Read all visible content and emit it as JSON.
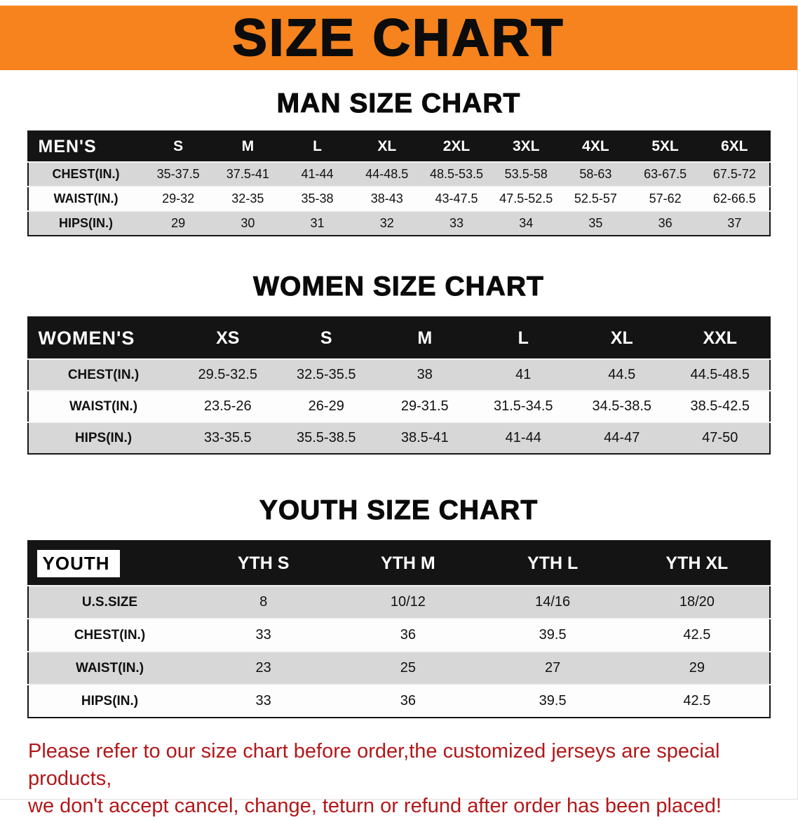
{
  "banner": {
    "title": "SIZE CHART"
  },
  "colors": {
    "banner_bg": "#F6831D",
    "table_header_bg": "#141414",
    "table_alt_row": "#D7D7D7",
    "footer_text": "#B3181A"
  },
  "sections": {
    "men": {
      "heading": "MAN SIZE CHART",
      "table": {
        "label": "MEN'S",
        "columns": [
          "S",
          "M",
          "L",
          "XL",
          "2XL",
          "3XL",
          "4XL",
          "5XL",
          "6XL"
        ],
        "rows": [
          {
            "label": "CHEST(IN.)",
            "values": [
              "35-37.5",
              "37.5-41",
              "41-44",
              "44-48.5",
              "48.5-53.5",
              "53.5-58",
              "58-63",
              "63-67.5",
              "67.5-72"
            ]
          },
          {
            "label": "WAIST(IN.)",
            "values": [
              "29-32",
              "32-35",
              "35-38",
              "38-43",
              "43-47.5",
              "47.5-52.5",
              "52.5-57",
              "57-62",
              "62-66.5"
            ]
          },
          {
            "label": "HIPS(IN.)",
            "values": [
              "29",
              "30",
              "31",
              "32",
              "33",
              "34",
              "35",
              "36",
              "37"
            ]
          }
        ]
      }
    },
    "women": {
      "heading": "WOMEN SIZE CHART",
      "table": {
        "label": "WOMEN'S",
        "columns": [
          "XS",
          "S",
          "M",
          "L",
          "XL",
          "XXL"
        ],
        "rows": [
          {
            "label": "CHEST(IN.)",
            "values": [
              "29.5-32.5",
              "32.5-35.5",
              "38",
              "41",
              "44.5",
              "44.5-48.5"
            ]
          },
          {
            "label": "WAIST(IN.)",
            "values": [
              "23.5-26",
              "26-29",
              "29-31.5",
              "31.5-34.5",
              "34.5-38.5",
              "38.5-42.5"
            ]
          },
          {
            "label": "HIPS(IN.)",
            "values": [
              "33-35.5",
              "35.5-38.5",
              "38.5-41",
              "41-44",
              "44-47",
              "47-50"
            ]
          }
        ]
      }
    },
    "youth": {
      "heading": "YOUTH SIZE CHART",
      "table": {
        "label": "YOUTH",
        "columns": [
          "YTH S",
          "YTH M",
          "YTH L",
          "YTH XL"
        ],
        "rows": [
          {
            "label": "U.S.SIZE",
            "values": [
              "8",
              "10/12",
              "14/16",
              "18/20"
            ]
          },
          {
            "label": "CHEST(IN.)",
            "values": [
              "33",
              "36",
              "39.5",
              "42.5"
            ]
          },
          {
            "label": "WAIST(IN.)",
            "values": [
              "23",
              "25",
              "27",
              "29"
            ]
          },
          {
            "label": "HIPS(IN.)",
            "values": [
              "33",
              "36",
              "39.5",
              "42.5"
            ]
          }
        ]
      }
    }
  },
  "footer": {
    "line1": "Please refer to our size chart before order,the customized jerseys are special products,",
    "line2": "we don't accept cancel, change, teturn or refund after order has been placed!"
  }
}
